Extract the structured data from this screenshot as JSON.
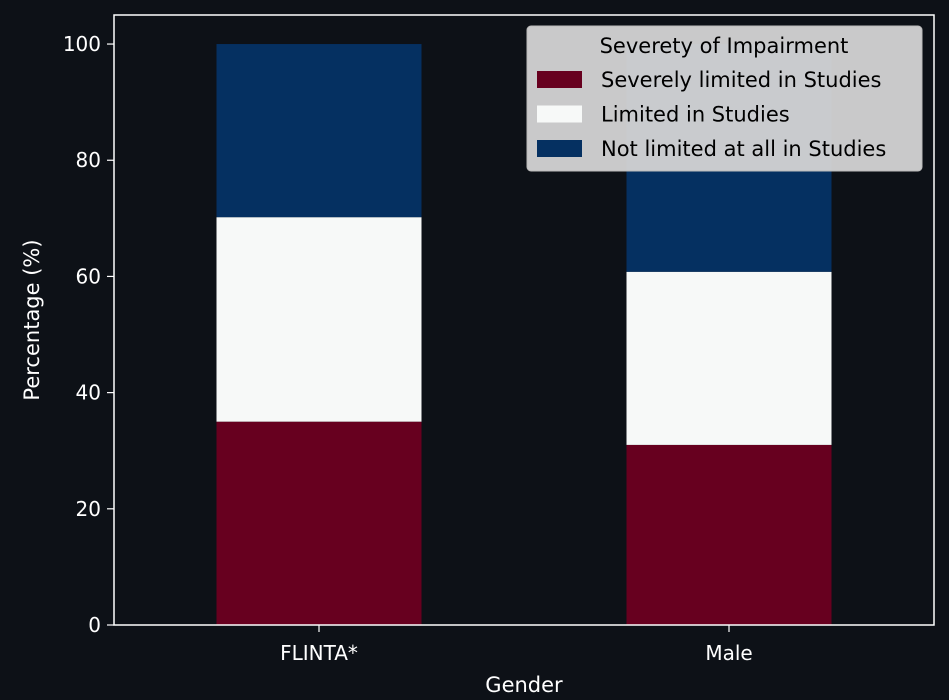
{
  "chart_data": {
    "type": "bar",
    "stacked": true,
    "categories": [
      "FLINTA*",
      "Male"
    ],
    "series": [
      {
        "name": "Severely limited in Studies",
        "values": [
          35.0,
          31.0
        ],
        "color": "#67001f"
      },
      {
        "name": "Limited in Studies",
        "values": [
          35.2,
          29.8
        ],
        "color": "#f7f9f8"
      },
      {
        "name": "Not limited at all in Studies",
        "values": [
          29.8,
          39.2
        ],
        "color": "#053061"
      }
    ],
    "xlabel": "Gender",
    "ylabel": "Percentage (%)",
    "ylim": [
      0,
      105
    ],
    "yticks": [
      0,
      20,
      40,
      60,
      80,
      100
    ],
    "legend": {
      "title": "Severety of Impairment",
      "placement": "top-right"
    },
    "grid": false
  },
  "colors": {
    "background": "#0d1117",
    "axis": "#ffffff",
    "text": "#ffffff",
    "legend_bg": "#d4d4d4",
    "legend_text": "#000000"
  }
}
